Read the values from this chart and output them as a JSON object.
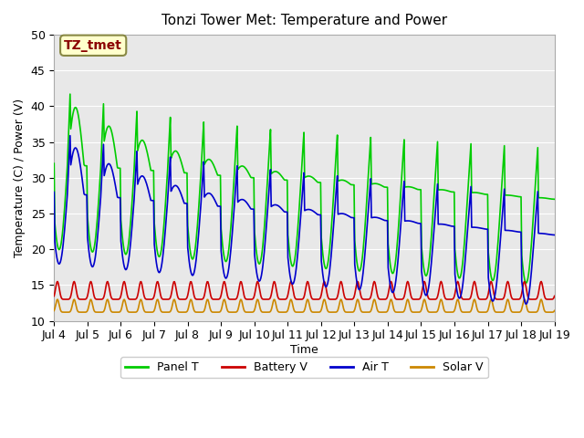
{
  "title": "Tonzi Tower Met: Temperature and Power",
  "ylabel": "Temperature (C) / Power (V)",
  "xlabel": "Time",
  "ylim": [
    10,
    50
  ],
  "annotation_text": "TZ_tmet",
  "bg_color": "#e8e8e8",
  "colors": {
    "panel_t": "#00cc00",
    "battery_v": "#cc0000",
    "air_t": "#0000cc",
    "solar_v": "#cc8800"
  },
  "legend": [
    "Panel T",
    "Battery V",
    "Air T",
    "Solar V"
  ],
  "xtick_labels": [
    "Jul 4",
    "Jul 5",
    "Jul 6",
    "Jul 7",
    "Jul 8",
    "Jul 9",
    "Jul 10",
    "Jul 11",
    "Jul 12",
    "Jul 13",
    "Jul 14",
    "Jul 15",
    "Jul 16",
    "Jul 17",
    "Jul 18",
    "Jul 19"
  ],
  "num_days": 15,
  "pts_per_day": 48
}
